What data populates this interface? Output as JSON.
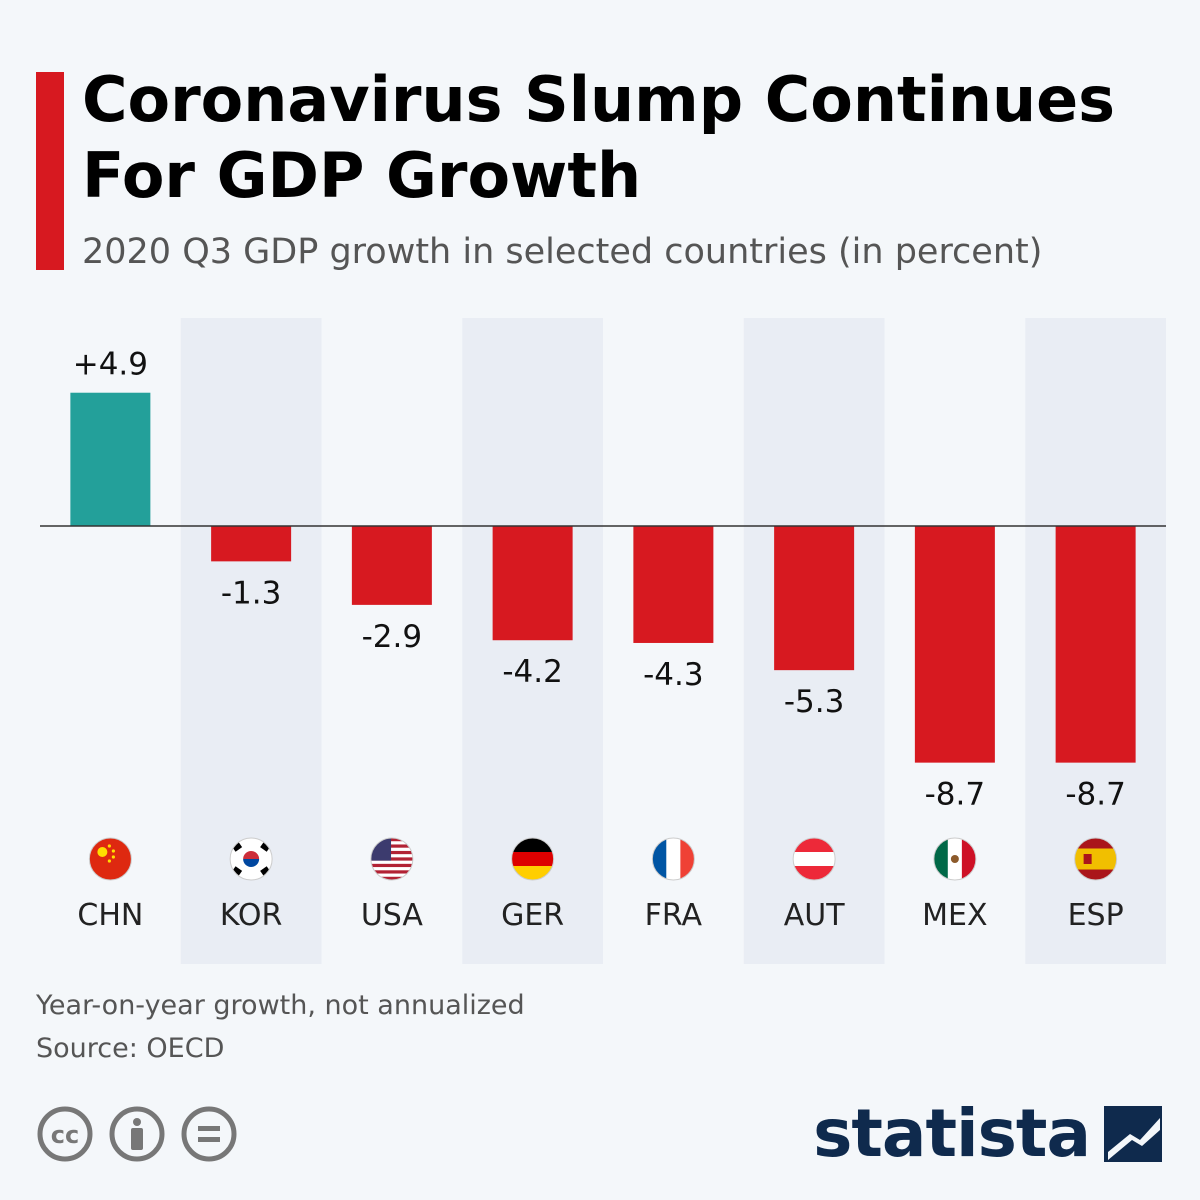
{
  "header": {
    "title_line1": "Coronavirus Slump Continues",
    "title_line2": "For GDP Growth",
    "subtitle": "2020 Q3 GDP growth in selected countries (in percent)"
  },
  "chart_data": {
    "type": "bar",
    "title": "Coronavirus Slump Continues For GDP Growth",
    "subtitle": "2020 Q3 GDP growth in selected countries (in percent)",
    "categories": [
      "CHN",
      "KOR",
      "USA",
      "GER",
      "FRA",
      "AUT",
      "MEX",
      "ESP"
    ],
    "values": [
      4.9,
      -1.3,
      -2.9,
      -4.2,
      -4.3,
      -5.3,
      -8.7,
      -8.7
    ],
    "value_labels": [
      "+4.9",
      "-1.3",
      "-2.9",
      "-4.2",
      "-4.3",
      "-5.3",
      "-8.7",
      "-8.7"
    ],
    "flags": [
      "china-flag",
      "south-korea-flag",
      "usa-flag",
      "germany-flag",
      "france-flag",
      "austria-flag",
      "mexico-flag",
      "spain-flag"
    ],
    "colors": {
      "positive": "#23a09a",
      "negative": "#d71920",
      "band": "#e9edf4",
      "zero_line": "#333333"
    },
    "grid": false,
    "legend": "none"
  },
  "footer": {
    "note": "Year-on-year growth, not annualized",
    "source": "Source: OECD",
    "license_icons": [
      "cc-icon",
      "attribution-icon",
      "no-derivatives-icon"
    ],
    "logo": "statista"
  }
}
